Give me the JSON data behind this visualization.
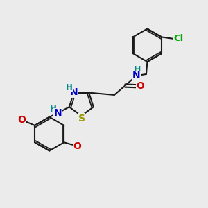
{
  "background_color": "#ebebeb",
  "bond_color": "#1a1a1a",
  "atoms": {
    "Cl": {
      "color": "#00aa00"
    },
    "O": {
      "color": "#cc0000"
    },
    "N": {
      "color": "#0000cc"
    },
    "S": {
      "color": "#999900"
    },
    "H": {
      "color": "#008888"
    }
  },
  "figsize": [
    3.0,
    3.0
  ],
  "dpi": 100
}
